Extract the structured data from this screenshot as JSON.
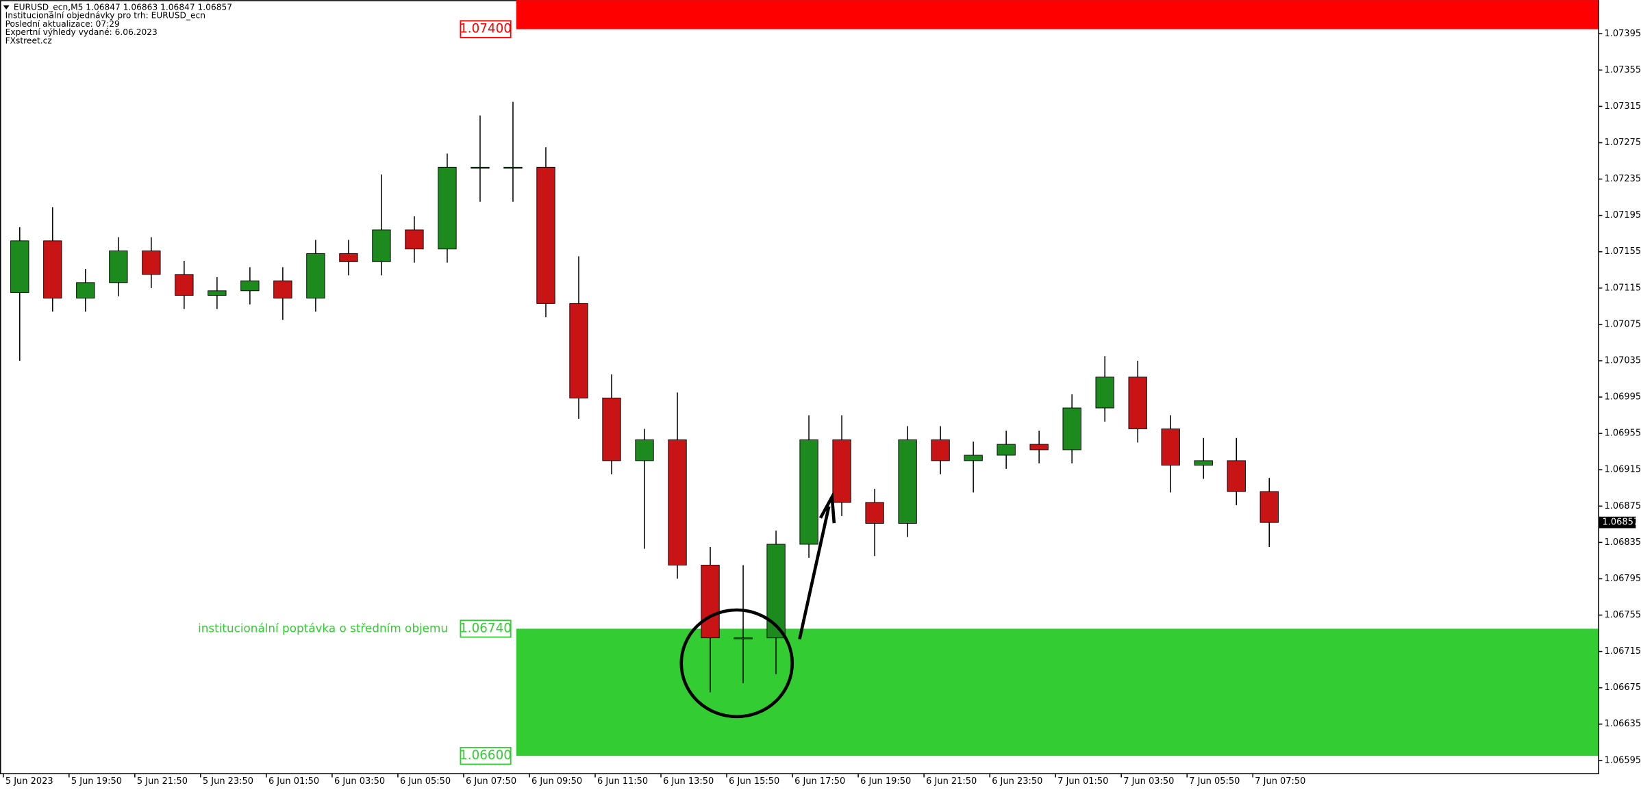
{
  "chart_data": {
    "type": "candlestick",
    "info": [
      "EURUSD_ecn,M5  1.06847 1.06863 1.06847 1.06857",
      "Institucionální objednávky pro trh: EURUSD_ecn",
      "Poslední aktualizace: 07:29",
      "Expertní výhledy vydané: 6.06.2023",
      "FXstreet.cz"
    ],
    "x": [
      0,
      1,
      2,
      3,
      4,
      5,
      6,
      7,
      8,
      9,
      10,
      11,
      12,
      13,
      14,
      15,
      16,
      17,
      18,
      19,
      20,
      21,
      22,
      23,
      24,
      25,
      26,
      27,
      28,
      29,
      30,
      31,
      32,
      33,
      34,
      35,
      36,
      37,
      38
    ],
    "open": [
      1.0711,
      1.07167,
      1.07104,
      1.07121,
      1.07156,
      1.0713,
      1.07107,
      1.07112,
      1.07123,
      1.07104,
      1.07153,
      1.07144,
      1.07179,
      1.07158,
      1.07248,
      1.07248,
      1.07248,
      1.07098,
      1.06994,
      1.06925,
      1.06948,
      1.0681,
      1.0673,
      1.0673,
      1.06833,
      1.06948,
      1.06879,
      1.06856,
      1.06948,
      1.06925,
      1.06931,
      1.06943,
      1.06937,
      1.06983,
      1.07017,
      1.0696,
      1.0692,
      1.06925,
      1.06891
    ],
    "high": [
      1.07182,
      1.07204,
      1.07136,
      1.07171,
      1.07171,
      1.07145,
      1.07127,
      1.07138,
      1.07138,
      1.07168,
      1.07168,
      1.0724,
      1.07194,
      1.07263,
      1.07305,
      1.0732,
      1.0727,
      1.0715,
      1.0702,
      1.0696,
      1.07,
      1.0683,
      1.0681,
      1.06848,
      1.06975,
      1.06975,
      1.06894,
      1.06963,
      1.06963,
      1.06946,
      1.06958,
      1.06958,
      1.06998,
      1.0704,
      1.07035,
      1.06975,
      1.0695,
      1.0695,
      1.06906
    ],
    "low": [
      1.07035,
      1.07089,
      1.07089,
      1.07106,
      1.07115,
      1.07092,
      1.07092,
      1.07097,
      1.0708,
      1.07089,
      1.07129,
      1.07129,
      1.07143,
      1.07143,
      1.0721,
      1.0721,
      1.07083,
      1.06971,
      1.0691,
      1.06828,
      1.06795,
      1.0667,
      1.0668,
      1.0669,
      1.06818,
      1.06864,
      1.0682,
      1.06841,
      1.0691,
      1.0689,
      1.06916,
      1.06922,
      1.06922,
      1.06968,
      1.06945,
      1.0689,
      1.06905,
      1.06876,
      1.0683
    ],
    "close": [
      1.07167,
      1.07104,
      1.07121,
      1.07156,
      1.0713,
      1.07107,
      1.07112,
      1.07123,
      1.07104,
      1.07153,
      1.07144,
      1.07179,
      1.07158,
      1.07248,
      1.07248,
      1.07248,
      1.07098,
      1.06994,
      1.06925,
      1.06948,
      1.0681,
      1.0673,
      1.0673,
      1.06833,
      1.06948,
      1.06879,
      1.06856,
      1.06948,
      1.06925,
      1.06931,
      1.06943,
      1.06937,
      1.06983,
      1.07017,
      1.0696,
      1.0692,
      1.06925,
      1.06891,
      1.06857
    ],
    "up_color": "#1d8a1d",
    "down_color": "#c81414",
    "xlim": [
      -0.1,
      48.5
    ],
    "xticks": [
      {
        "value": 0,
        "label": "5 Jun 2023"
      },
      {
        "value": 2,
        "label": "5 Jun 19:50"
      },
      {
        "value": 4,
        "label": "5 Jun 21:50"
      },
      {
        "value": 6,
        "label": "5 Jun 23:50"
      },
      {
        "value": 8,
        "label": "6 Jun 01:50"
      },
      {
        "value": 10,
        "label": "6 Jun 03:50"
      },
      {
        "value": 12,
        "label": "6 Jun 05:50"
      },
      {
        "value": 14,
        "label": "6 Jun 07:50"
      },
      {
        "value": 16,
        "label": "6 Jun 09:50"
      },
      {
        "value": 18,
        "label": "6 Jun 11:50"
      },
      {
        "value": 20,
        "label": "6 Jun 13:50"
      },
      {
        "value": 22,
        "label": "6 Jun 15:50"
      },
      {
        "value": 24,
        "label": "6 Jun 17:50"
      },
      {
        "value": 26,
        "label": "6 Jun 19:50"
      },
      {
        "value": 28,
        "label": "6 Jun 21:50"
      },
      {
        "value": 30,
        "label": "6 Jun 23:50"
      },
      {
        "value": 32,
        "label": "7 Jun 01:50"
      },
      {
        "value": 34,
        "label": "7 Jun 03:50"
      },
      {
        "value": 36,
        "label": "7 Jun 05:50"
      },
      {
        "value": 38,
        "label": "7 Jun 07:50"
      }
    ],
    "ylim": [
      1.06581,
      1.07432
    ],
    "yticks": [
      1.07395,
      1.07355,
      1.07315,
      1.07275,
      1.07235,
      1.07195,
      1.07155,
      1.07115,
      1.07075,
      1.07035,
      1.06995,
      1.06955,
      1.06915,
      1.06875,
      1.06835,
      1.06795,
      1.06755,
      1.06715,
      1.06675,
      1.06635,
      1.06595
    ],
    "zones": [
      {
        "color": "#ff0000",
        "start": 15.6,
        "prices": [
          {
            "value": 1.074,
            "label": "1.07400"
          }
        ]
      },
      {
        "color": "#33cc33",
        "start": 15.6,
        "text": "institucionální poptávka o středním objemu",
        "prices": [
          {
            "value": 1.0674,
            "label": "1.06740"
          },
          {
            "value": 1.066,
            "label": "1.06600"
          }
        ]
      }
    ]
  }
}
